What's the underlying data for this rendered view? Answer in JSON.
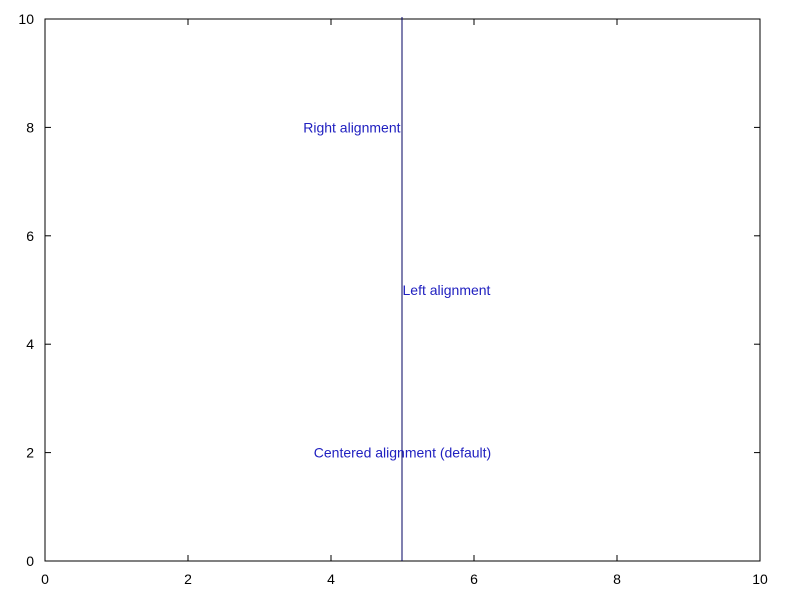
{
  "chart_data": {
    "type": "scatter",
    "title": "",
    "xlabel": "",
    "ylabel": "",
    "xlim": [
      0,
      10
    ],
    "ylim": [
      0,
      10
    ],
    "xticks": [
      0,
      2,
      4,
      6,
      8,
      10
    ],
    "yticks": [
      0,
      2,
      4,
      6,
      8,
      10
    ],
    "xtick_labels": [
      "0",
      "2",
      "4",
      "6",
      "8",
      "10"
    ],
    "ytick_labels": [
      "0",
      "2",
      "4",
      "6",
      "8",
      "10"
    ],
    "grid": false,
    "series": [],
    "vertical_line": {
      "x": 5,
      "color": "#000060"
    },
    "annotations": [
      {
        "text": "Right alignment",
        "x": 5,
        "y": 8,
        "align": "right",
        "color": "#2020c0"
      },
      {
        "text": "Left alignment",
        "x": 5,
        "y": 5,
        "align": "left",
        "color": "#2020c0"
      },
      {
        "text": "Centered alignment (default)",
        "x": 5,
        "y": 2,
        "align": "center",
        "color": "#2020c0"
      }
    ],
    "colors": {
      "axis": "#000000",
      "text": "#2020c0",
      "line": "#000060"
    }
  }
}
